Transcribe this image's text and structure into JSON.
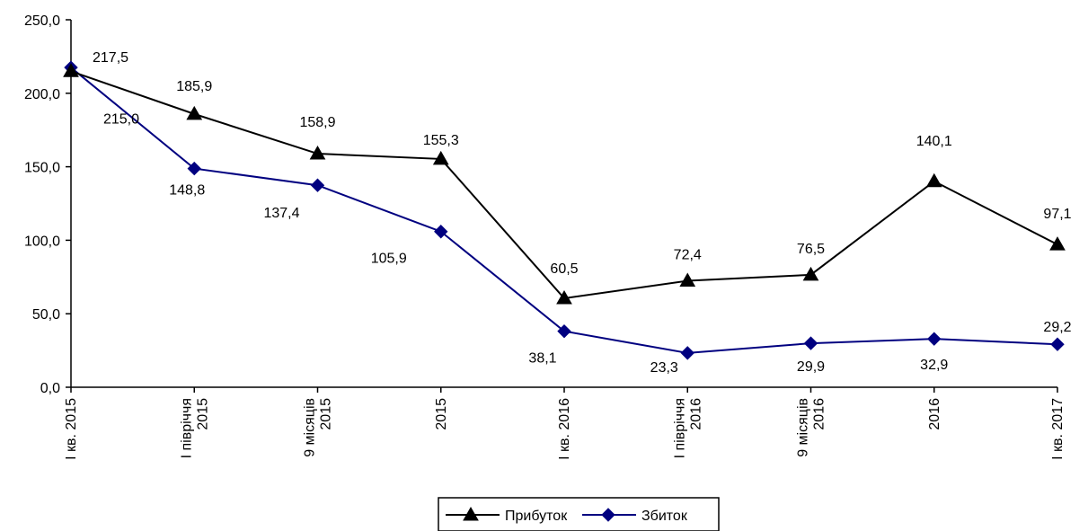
{
  "chart_data": {
    "type": "line",
    "categories": [
      [
        "I кв. 2015"
      ],
      [
        "I півріччя",
        "2015"
      ],
      [
        "9 місяців",
        "2015"
      ],
      [
        "2015"
      ],
      [
        "I кв. 2016"
      ],
      [
        "I півріччя",
        "2016"
      ],
      [
        "9 місяців",
        "2016"
      ],
      [
        "2016"
      ],
      [
        "I кв. 2017"
      ]
    ],
    "ylim": [
      0,
      250
    ],
    "ytick_labels": [
      "0,0",
      "50,0",
      "100,0",
      "150,0",
      "200,0",
      "250,0"
    ],
    "ytick_values": [
      0,
      50,
      100,
      150,
      200,
      250
    ],
    "grid": false,
    "legend_position": "bottom",
    "series": [
      {
        "name": "Прибуток",
        "color": "#000000",
        "marker": "triangle",
        "values": [
          215.0,
          185.9,
          158.9,
          155.3,
          60.5,
          72.4,
          76.5,
          140.1,
          97.1
        ],
        "labels": [
          "215,0",
          "185,9",
          "158,9",
          "155,3",
          "60,5",
          "72,4",
          "76,5",
          "140,1",
          "97,1"
        ]
      },
      {
        "name": "Збиток",
        "color": "#000080",
        "marker": "diamond",
        "values": [
          217.5,
          148.8,
          137.4,
          105.9,
          38.1,
          23.3,
          29.9,
          32.9,
          29.2
        ],
        "labels": [
          "217,5",
          "148,8",
          "137,4",
          "105,9",
          "38,1",
          "23,3",
          "29,9",
          "32,9",
          "29,2"
        ]
      }
    ]
  }
}
